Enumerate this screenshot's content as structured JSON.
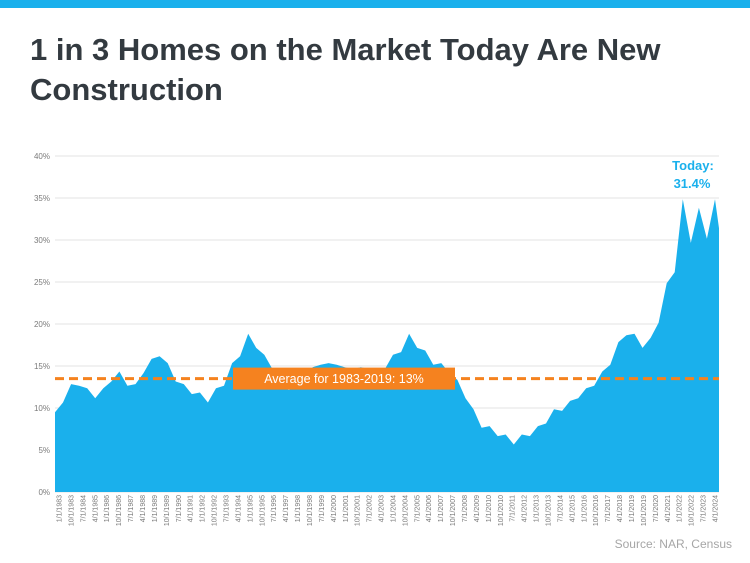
{
  "title": "1 in 3 Homes on the Market Today Are New Construction",
  "source": "Source: NAR, Census",
  "colors": {
    "area": "#1ab0ec",
    "average": "#f5821f",
    "accent_bar": "#1ab0ec",
    "title": "#333a40"
  },
  "chart_data": {
    "type": "area",
    "ylim": [
      0,
      40
    ],
    "y_ticks": [
      "0%",
      "5%",
      "10%",
      "15%",
      "20%",
      "25%",
      "30%",
      "35%",
      "40%"
    ],
    "y_tick_values": [
      0,
      5,
      10,
      15,
      20,
      25,
      30,
      35,
      40
    ],
    "x_tick_labels": [
      "1/1/1983",
      "10/1/1983",
      "7/1/1984",
      "4/1/1985",
      "1/1/1986",
      "10/1/1986",
      "7/1/1987",
      "4/1/1988",
      "1/1/1989",
      "10/1/1989",
      "7/1/1990",
      "4/1/1991",
      "1/1/1992",
      "10/1/1992",
      "7/1/1993",
      "4/1/1994",
      "1/1/1995",
      "10/1/1995",
      "7/1/1996",
      "4/1/1997",
      "1/1/1998",
      "10/1/1998",
      "7/1/1999",
      "4/1/2000",
      "1/1/2001",
      "10/1/2001",
      "7/1/2002",
      "4/1/2003",
      "1/1/2004",
      "10/1/2004",
      "7/1/2005",
      "4/1/2006",
      "1/1/2007",
      "10/1/2007",
      "7/1/2008",
      "4/1/2009",
      "1/1/2010",
      "10/1/2010",
      "7/1/2011",
      "4/1/2012",
      "1/1/2013",
      "10/1/2013",
      "7/1/2014",
      "4/1/2015",
      "1/1/2016",
      "10/1/2016",
      "7/1/2017",
      "4/1/2018",
      "1/1/2019",
      "10/1/2019",
      "7/1/2020",
      "4/1/2021",
      "1/1/2022",
      "10/1/2022",
      "7/1/2023",
      "4/1/2024"
    ],
    "series": [
      {
        "x": [
          "1983-01",
          "1983-07",
          "1984-01",
          "1984-07",
          "1985-01",
          "1985-07",
          "1986-01",
          "1986-07",
          "1987-01",
          "1987-07",
          "1988-01",
          "1988-07",
          "1989-01",
          "1989-07",
          "1990-01",
          "1990-07",
          "1991-01",
          "1991-07",
          "1992-01",
          "1992-07",
          "1993-01",
          "1993-07",
          "1994-01",
          "1994-07",
          "1995-01",
          "1995-07",
          "1996-01",
          "1996-07",
          "1997-01",
          "1997-07",
          "1998-01",
          "1998-07",
          "1999-01",
          "1999-07",
          "2000-01",
          "2000-07",
          "2001-01",
          "2001-07",
          "2002-01",
          "2002-07",
          "2003-01",
          "2003-07",
          "2004-01",
          "2004-07",
          "2005-01",
          "2005-07",
          "2006-01",
          "2006-07",
          "2007-01",
          "2007-07",
          "2008-01",
          "2008-07",
          "2009-01",
          "2009-07",
          "2010-01",
          "2010-07",
          "2011-01",
          "2011-07",
          "2012-01",
          "2012-07",
          "2013-01",
          "2013-07",
          "2014-01",
          "2014-07",
          "2015-01",
          "2015-07",
          "2016-01",
          "2016-07",
          "2017-01",
          "2017-07",
          "2018-01",
          "2018-07",
          "2019-01",
          "2019-07",
          "2020-01",
          "2020-07",
          "2021-01",
          "2021-07",
          "2022-01",
          "2022-07",
          "2023-01",
          "2023-07",
          "2024-01",
          "2024-04"
        ],
        "values": [
          9.5,
          11.0,
          12.5,
          13.0,
          12.0,
          11.5,
          12.0,
          13.5,
          14.0,
          13.0,
          12.5,
          14.5,
          15.5,
          16.5,
          15.0,
          13.5,
          12.5,
          12.0,
          11.5,
          11.0,
          12.0,
          13.0,
          15.0,
          16.5,
          18.5,
          17.5,
          16.0,
          15.0,
          13.5,
          12.5,
          12.0,
          13.0,
          14.5,
          15.5,
          15.0,
          15.5,
          14.5,
          15.0,
          14.5,
          15.0,
          14.0,
          15.0,
          16.0,
          17.0,
          18.5,
          17.5,
          16.5,
          15.5,
          15.0,
          14.5,
          13.0,
          11.5,
          9.5,
          8.0,
          7.5,
          7.0,
          6.5,
          6.0,
          6.5,
          7.0,
          7.5,
          8.5,
          9.5,
          10.0,
          10.5,
          11.5,
          12.0,
          13.0,
          14.0,
          15.5,
          17.5,
          19.0,
          18.5,
          17.5,
          18.0,
          20.5,
          24.5,
          26.5,
          34.5,
          30.0,
          33.5,
          30.5,
          34.5,
          31.4
        ]
      }
    ],
    "average_line": {
      "label": "Average for 1983-2019: 13%",
      "value": 13
    },
    "annotation": {
      "line1": "Today:",
      "line2": "31.4%"
    }
  }
}
